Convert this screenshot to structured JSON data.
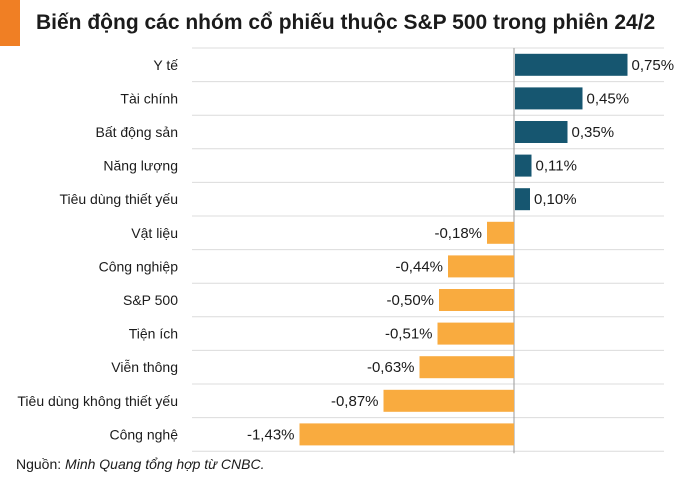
{
  "header": {
    "title": "Biến động các nhóm cổ phiếu thuộc S&P 500 trong phiên 24/2",
    "accent_color": "#f07f24"
  },
  "chart_data": {
    "type": "bar",
    "orientation": "horizontal",
    "title": "Biến động các nhóm cổ phiếu thuộc S&P 500 trong phiên 24/2",
    "xlabel": "",
    "ylabel": "",
    "unit": "%",
    "xlim": [
      -1.5,
      0.9
    ],
    "grid": true,
    "categories": [
      "Y tế",
      "Tài chính",
      "Bất động sản",
      "Năng lượng",
      "Tiêu dùng thiết yếu",
      "Vật liệu",
      "Công nghiệp",
      "S&P 500",
      "Tiện ích",
      "Viễn thông",
      "Tiêu dùng không thiết yếu",
      "Công nghệ"
    ],
    "values": [
      0.75,
      0.45,
      0.35,
      0.11,
      0.1,
      -0.18,
      -0.44,
      -0.5,
      -0.51,
      -0.63,
      -0.87,
      -1.43
    ],
    "labels": [
      "0,75%",
      "0,45%",
      "0,35%",
      "0,11%",
      "0,10%",
      "-0,18%",
      "-0,44%",
      "-0,50%",
      "-0,51%",
      "-0,63%",
      "-0,87%",
      "-1,43%"
    ],
    "colors": {
      "positive": "#165670",
      "negative": "#f9ab3f"
    }
  },
  "footer": {
    "source_prefix": "Nguồn: ",
    "source_text": "Minh Quang tổng hợp từ CNBC."
  }
}
